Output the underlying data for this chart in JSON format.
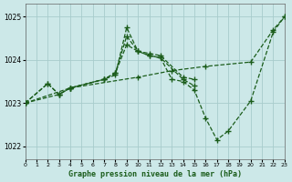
{
  "title": "Graphe pression niveau de la mer (hPa)",
  "bg_color": "#cce8e8",
  "grid_color": "#a8cccc",
  "line_color": "#1a5c1a",
  "xlim": [
    0,
    23
  ],
  "ylim": [
    1021.7,
    1025.3
  ],
  "yticks": [
    1022,
    1023,
    1024,
    1025
  ],
  "xticks": [
    0,
    1,
    2,
    3,
    4,
    5,
    6,
    7,
    8,
    9,
    10,
    11,
    12,
    13,
    14,
    15,
    16,
    17,
    18,
    19,
    20,
    21,
    22,
    23
  ],
  "series": [
    {
      "x": [
        0,
        4,
        10,
        13,
        16,
        20,
        22,
        23
      ],
      "y": [
        1023.0,
        1023.35,
        1023.6,
        1023.75,
        1023.85,
        1023.95,
        1024.7,
        1025.0
      ]
    },
    {
      "x": [
        0,
        3,
        4,
        7,
        8,
        9,
        10,
        11,
        12,
        13,
        14,
        15,
        16,
        17,
        18,
        20,
        22,
        23
      ],
      "y": [
        1023.0,
        1023.2,
        1023.35,
        1023.55,
        1023.65,
        1024.75,
        1024.2,
        1024.1,
        1024.05,
        1023.55,
        1023.5,
        1023.3,
        1022.65,
        1022.15,
        1022.35,
        1023.05,
        1024.65,
        1025.0
      ]
    },
    {
      "x": [
        0,
        2,
        3,
        4,
        7,
        8,
        9,
        10,
        11,
        12,
        14,
        15
      ],
      "y": [
        1023.0,
        1023.45,
        1023.2,
        1023.35,
        1023.55,
        1023.7,
        1024.55,
        1024.2,
        1024.15,
        1024.1,
        1023.6,
        1023.55
      ]
    },
    {
      "x": [
        0,
        2,
        3,
        4,
        7,
        8,
        9,
        10,
        11,
        12,
        14,
        15
      ],
      "y": [
        1023.0,
        1023.45,
        1023.2,
        1023.35,
        1023.55,
        1023.7,
        1024.35,
        1024.2,
        1024.1,
        1024.05,
        1023.55,
        1023.4
      ]
    }
  ]
}
